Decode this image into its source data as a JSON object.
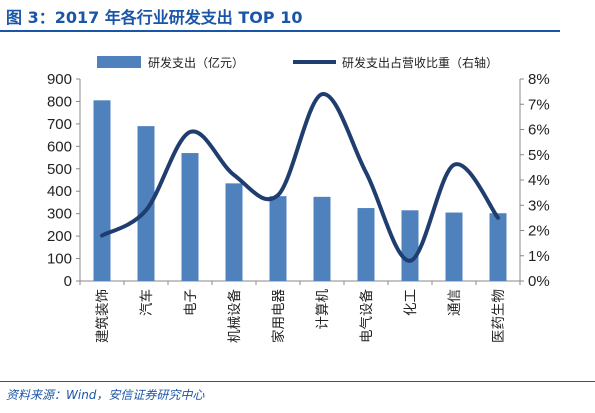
{
  "title": "图 3：2017 年各行业研发支出 TOP 10",
  "source": "资料来源：Wind，安信证券研究中心",
  "colors": {
    "bar": "#4f81bd",
    "line": "#1f3d6e",
    "accent": "#1a56a7"
  },
  "chart_data": {
    "type": "bar",
    "categories": [
      "建筑装饰",
      "汽车",
      "电子",
      "机械设备",
      "家用电器",
      "计算机",
      "电气设备",
      "化工",
      "通信",
      "医药生物"
    ],
    "series": [
      {
        "name": "研发支出（亿元）",
        "type": "bar",
        "axis": "left",
        "values": [
          805,
          690,
          570,
          435,
          378,
          375,
          325,
          315,
          305,
          302
        ]
      },
      {
        "name": "研发支出占营收比重（右轴）",
        "type": "line",
        "axis": "right",
        "values": [
          1.8,
          2.8,
          5.9,
          4.2,
          3.4,
          7.4,
          4.3,
          0.8,
          4.6,
          2.5
        ]
      }
    ],
    "y_left": {
      "ylim": [
        0,
        900
      ],
      "ticks": [
        "0",
        "100",
        "200",
        "300",
        "400",
        "500",
        "600",
        "700",
        "800",
        "900"
      ]
    },
    "y_right": {
      "ylim": [
        0,
        8
      ],
      "ticks": [
        "0%",
        "1%",
        "2%",
        "3%",
        "4%",
        "5%",
        "6%",
        "7%",
        "8%"
      ]
    },
    "legend": "top",
    "grid": false
  }
}
